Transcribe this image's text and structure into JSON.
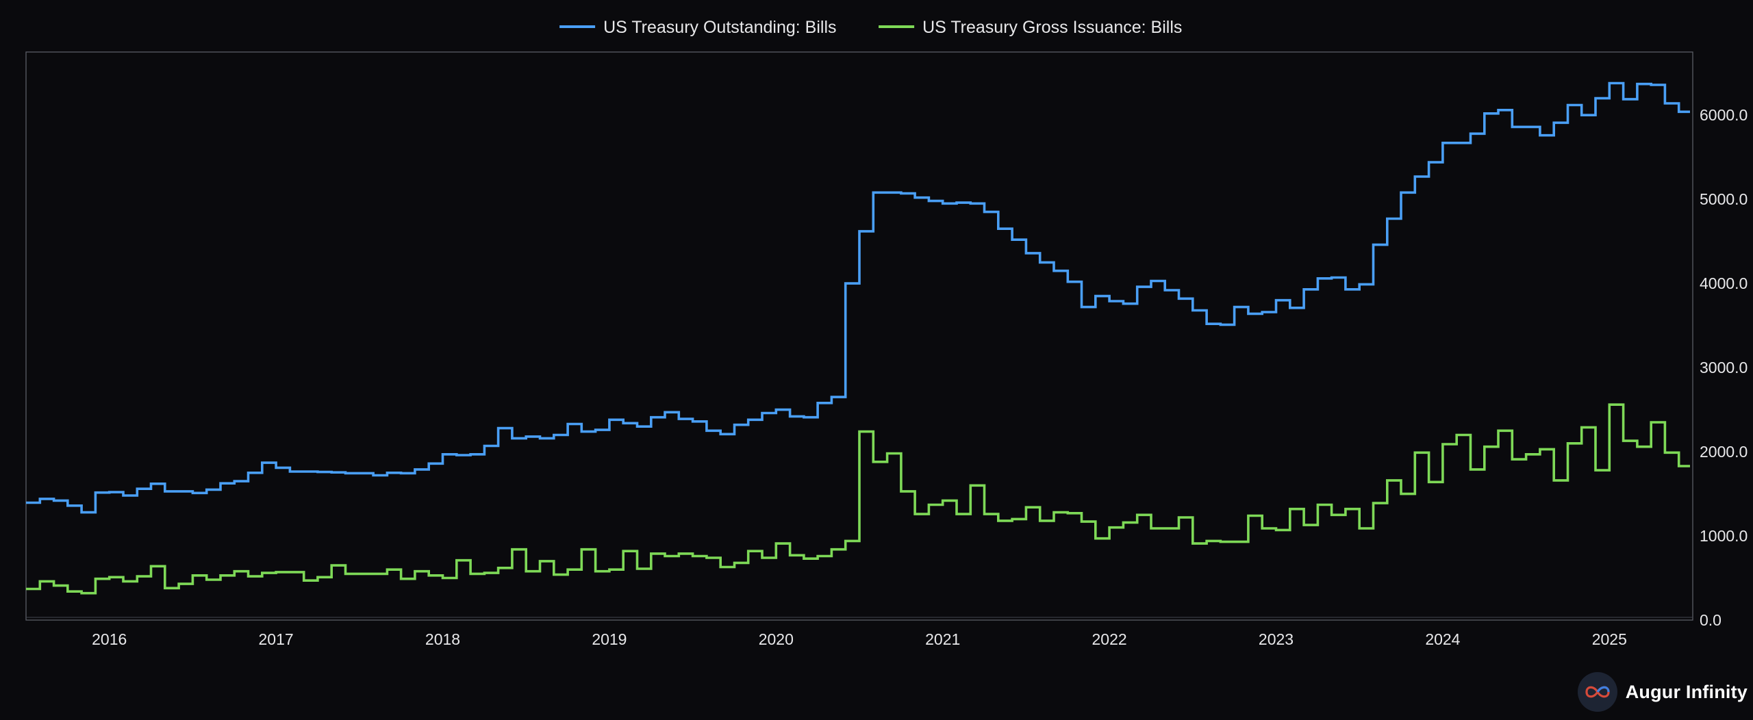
{
  "brand": {
    "name": "Augur Infinity",
    "logo_icon": "infinity-logo-icon"
  },
  "chart_data": {
    "type": "line",
    "step": true,
    "title": "",
    "xlabel": "",
    "ylabel": "",
    "y_axis_side": "right",
    "ylim": [
      0,
      6750
    ],
    "xlim": [
      "2015-07",
      "2025-06"
    ],
    "y_ticks": [
      "0.0",
      "1000.0",
      "2000.0",
      "3000.0",
      "4000.0",
      "5000.0",
      "6000.0"
    ],
    "x_ticks": [
      "2016",
      "2017",
      "2018",
      "2019",
      "2020",
      "2021",
      "2022",
      "2023",
      "2024",
      "2025"
    ],
    "legend_position": "top-center",
    "grid": false,
    "series": [
      {
        "name": "US Treasury Outstanding: Bills",
        "color": "#4a9ff5",
        "points": [
          [
            "2015-07",
            1395
          ],
          [
            "2015-08",
            1440
          ],
          [
            "2015-09",
            1420
          ],
          [
            "2015-10",
            1360
          ],
          [
            "2015-11",
            1280
          ],
          [
            "2015-12",
            1515
          ],
          [
            "2016-01",
            1520
          ],
          [
            "2016-02",
            1480
          ],
          [
            "2016-03",
            1560
          ],
          [
            "2016-04",
            1620
          ],
          [
            "2016-05",
            1530
          ],
          [
            "2016-06",
            1530
          ],
          [
            "2016-07",
            1510
          ],
          [
            "2016-08",
            1550
          ],
          [
            "2016-09",
            1625
          ],
          [
            "2016-10",
            1650
          ],
          [
            "2016-11",
            1750
          ],
          [
            "2016-12",
            1870
          ],
          [
            "2017-01",
            1810
          ],
          [
            "2017-02",
            1765
          ],
          [
            "2017-03",
            1765
          ],
          [
            "2017-04",
            1760
          ],
          [
            "2017-05",
            1755
          ],
          [
            "2017-06",
            1745
          ],
          [
            "2017-07",
            1745
          ],
          [
            "2017-08",
            1720
          ],
          [
            "2017-09",
            1750
          ],
          [
            "2017-10",
            1745
          ],
          [
            "2017-11",
            1790
          ],
          [
            "2017-12",
            1860
          ],
          [
            "2018-01",
            1970
          ],
          [
            "2018-02",
            1960
          ],
          [
            "2018-03",
            1970
          ],
          [
            "2018-04",
            2070
          ],
          [
            "2018-05",
            2280
          ],
          [
            "2018-06",
            2160
          ],
          [
            "2018-07",
            2180
          ],
          [
            "2018-08",
            2160
          ],
          [
            "2018-09",
            2200
          ],
          [
            "2018-10",
            2330
          ],
          [
            "2018-11",
            2240
          ],
          [
            "2018-12",
            2260
          ],
          [
            "2019-01",
            2380
          ],
          [
            "2019-02",
            2340
          ],
          [
            "2019-03",
            2300
          ],
          [
            "2019-04",
            2410
          ],
          [
            "2019-05",
            2470
          ],
          [
            "2019-06",
            2390
          ],
          [
            "2019-07",
            2360
          ],
          [
            "2019-08",
            2250
          ],
          [
            "2019-09",
            2210
          ],
          [
            "2019-10",
            2320
          ],
          [
            "2019-11",
            2380
          ],
          [
            "2019-12",
            2460
          ],
          [
            "2020-01",
            2500
          ],
          [
            "2020-02",
            2420
          ],
          [
            "2020-03",
            2410
          ],
          [
            "2020-04",
            2580
          ],
          [
            "2020-05",
            2650
          ],
          [
            "2020-06",
            4000
          ],
          [
            "2020-07",
            4620
          ],
          [
            "2020-08",
            5080
          ],
          [
            "2020-09",
            5080
          ],
          [
            "2020-10",
            5070
          ],
          [
            "2020-11",
            5020
          ],
          [
            "2020-12",
            4980
          ],
          [
            "2021-01",
            4950
          ],
          [
            "2021-02",
            4960
          ],
          [
            "2021-03",
            4950
          ],
          [
            "2021-04",
            4850
          ],
          [
            "2021-05",
            4650
          ],
          [
            "2021-06",
            4520
          ],
          [
            "2021-07",
            4360
          ],
          [
            "2021-08",
            4250
          ],
          [
            "2021-09",
            4150
          ],
          [
            "2021-10",
            4020
          ],
          [
            "2021-11",
            3720
          ],
          [
            "2021-12",
            3850
          ],
          [
            "2022-01",
            3790
          ],
          [
            "2022-02",
            3760
          ],
          [
            "2022-03",
            3960
          ],
          [
            "2022-04",
            4030
          ],
          [
            "2022-05",
            3920
          ],
          [
            "2022-06",
            3820
          ],
          [
            "2022-07",
            3680
          ],
          [
            "2022-08",
            3520
          ],
          [
            "2022-09",
            3510
          ],
          [
            "2022-10",
            3720
          ],
          [
            "2022-11",
            3640
          ],
          [
            "2022-12",
            3660
          ],
          [
            "2023-01",
            3800
          ],
          [
            "2023-02",
            3710
          ],
          [
            "2023-03",
            3930
          ],
          [
            "2023-04",
            4060
          ],
          [
            "2023-05",
            4070
          ],
          [
            "2023-06",
            3930
          ],
          [
            "2023-07",
            3990
          ],
          [
            "2023-08",
            4460
          ],
          [
            "2023-09",
            4770
          ],
          [
            "2023-10",
            5080
          ],
          [
            "2023-11",
            5270
          ],
          [
            "2023-12",
            5440
          ],
          [
            "2024-01",
            5670
          ],
          [
            "2024-02",
            5670
          ],
          [
            "2024-03",
            5780
          ],
          [
            "2024-04",
            6020
          ],
          [
            "2024-05",
            6060
          ],
          [
            "2024-06",
            5860
          ],
          [
            "2024-07",
            5860
          ],
          [
            "2024-08",
            5760
          ],
          [
            "2024-09",
            5910
          ],
          [
            "2024-10",
            6120
          ],
          [
            "2024-11",
            6000
          ],
          [
            "2024-12",
            6200
          ],
          [
            "2025-01",
            6380
          ],
          [
            "2025-02",
            6190
          ],
          [
            "2025-03",
            6370
          ],
          [
            "2025-04",
            6360
          ],
          [
            "2025-05",
            6140
          ],
          [
            "2025-06",
            6040
          ]
        ]
      },
      {
        "name": "US Treasury Gross Issuance: Bills",
        "color": "#7ed957",
        "points": [
          [
            "2015-07",
            370
          ],
          [
            "2015-08",
            460
          ],
          [
            "2015-09",
            410
          ],
          [
            "2015-10",
            340
          ],
          [
            "2015-11",
            320
          ],
          [
            "2015-12",
            490
          ],
          [
            "2016-01",
            510
          ],
          [
            "2016-02",
            460
          ],
          [
            "2016-03",
            520
          ],
          [
            "2016-04",
            640
          ],
          [
            "2016-05",
            380
          ],
          [
            "2016-06",
            430
          ],
          [
            "2016-07",
            530
          ],
          [
            "2016-08",
            480
          ],
          [
            "2016-09",
            530
          ],
          [
            "2016-10",
            580
          ],
          [
            "2016-11",
            520
          ],
          [
            "2016-12",
            560
          ],
          [
            "2017-01",
            570
          ],
          [
            "2017-02",
            570
          ],
          [
            "2017-03",
            470
          ],
          [
            "2017-04",
            510
          ],
          [
            "2017-05",
            650
          ],
          [
            "2017-06",
            550
          ],
          [
            "2017-07",
            550
          ],
          [
            "2017-08",
            550
          ],
          [
            "2017-09",
            600
          ],
          [
            "2017-10",
            490
          ],
          [
            "2017-11",
            580
          ],
          [
            "2017-12",
            530
          ],
          [
            "2018-01",
            500
          ],
          [
            "2018-02",
            710
          ],
          [
            "2018-03",
            550
          ],
          [
            "2018-04",
            560
          ],
          [
            "2018-05",
            620
          ],
          [
            "2018-06",
            840
          ],
          [
            "2018-07",
            580
          ],
          [
            "2018-08",
            700
          ],
          [
            "2018-09",
            540
          ],
          [
            "2018-10",
            600
          ],
          [
            "2018-11",
            840
          ],
          [
            "2018-12",
            580
          ],
          [
            "2019-01",
            600
          ],
          [
            "2019-02",
            820
          ],
          [
            "2019-03",
            610
          ],
          [
            "2019-04",
            790
          ],
          [
            "2019-05",
            760
          ],
          [
            "2019-06",
            790
          ],
          [
            "2019-07",
            760
          ],
          [
            "2019-08",
            740
          ],
          [
            "2019-09",
            630
          ],
          [
            "2019-10",
            680
          ],
          [
            "2019-11",
            820
          ],
          [
            "2019-12",
            740
          ],
          [
            "2020-01",
            910
          ],
          [
            "2020-02",
            770
          ],
          [
            "2020-03",
            730
          ],
          [
            "2020-04",
            760
          ],
          [
            "2020-05",
            840
          ],
          [
            "2020-06",
            940
          ],
          [
            "2020-07",
            2240
          ],
          [
            "2020-08",
            1880
          ],
          [
            "2020-09",
            1980
          ],
          [
            "2020-10",
            1530
          ],
          [
            "2020-11",
            1260
          ],
          [
            "2020-12",
            1370
          ],
          [
            "2021-01",
            1420
          ],
          [
            "2021-02",
            1260
          ],
          [
            "2021-03",
            1600
          ],
          [
            "2021-04",
            1260
          ],
          [
            "2021-05",
            1180
          ],
          [
            "2021-06",
            1200
          ],
          [
            "2021-07",
            1340
          ],
          [
            "2021-08",
            1180
          ],
          [
            "2021-09",
            1280
          ],
          [
            "2021-10",
            1270
          ],
          [
            "2021-11",
            1170
          ],
          [
            "2021-12",
            970
          ],
          [
            "2022-01",
            1100
          ],
          [
            "2022-02",
            1160
          ],
          [
            "2022-03",
            1250
          ],
          [
            "2022-04",
            1090
          ],
          [
            "2022-05",
            1090
          ],
          [
            "2022-06",
            1220
          ],
          [
            "2022-07",
            910
          ],
          [
            "2022-08",
            940
          ],
          [
            "2022-09",
            930
          ],
          [
            "2022-10",
            930
          ],
          [
            "2022-11",
            1240
          ],
          [
            "2022-12",
            1090
          ],
          [
            "2023-01",
            1070
          ],
          [
            "2023-02",
            1320
          ],
          [
            "2023-03",
            1130
          ],
          [
            "2023-04",
            1370
          ],
          [
            "2023-05",
            1250
          ],
          [
            "2023-06",
            1320
          ],
          [
            "2023-07",
            1090
          ],
          [
            "2023-08",
            1390
          ],
          [
            "2023-09",
            1660
          ],
          [
            "2023-10",
            1500
          ],
          [
            "2023-11",
            1990
          ],
          [
            "2023-12",
            1640
          ],
          [
            "2024-01",
            2090
          ],
          [
            "2024-02",
            2200
          ],
          [
            "2024-03",
            1790
          ],
          [
            "2024-04",
            2060
          ],
          [
            "2024-05",
            2250
          ],
          [
            "2024-06",
            1910
          ],
          [
            "2024-07",
            1970
          ],
          [
            "2024-08",
            2030
          ],
          [
            "2024-09",
            1660
          ],
          [
            "2024-10",
            2100
          ],
          [
            "2024-11",
            2290
          ],
          [
            "2024-12",
            1780
          ],
          [
            "2025-01",
            2560
          ],
          [
            "2025-02",
            2130
          ],
          [
            "2025-03",
            2060
          ],
          [
            "2025-04",
            2350
          ],
          [
            "2025-05",
            1990
          ],
          [
            "2025-06",
            1830
          ]
        ]
      }
    ]
  }
}
